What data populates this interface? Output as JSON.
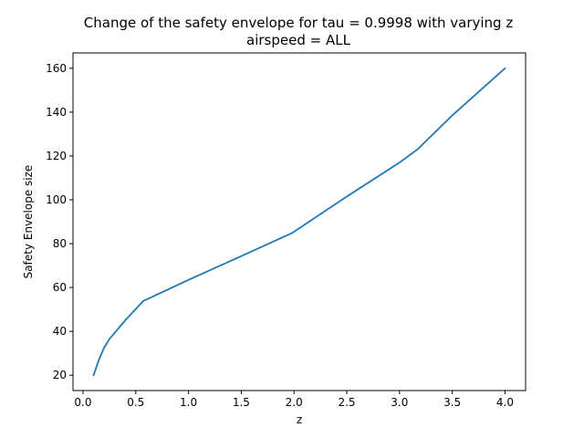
{
  "chart_data": {
    "type": "line",
    "title": "Change of the safety envelope for tau = 0.9998 with varying z",
    "subtitle": "airspeed = ALL",
    "xlabel": "z",
    "ylabel": "Safety Envelope size",
    "xlim": [
      -0.095,
      4.195
    ],
    "ylim": [
      13.0,
      167.0
    ],
    "x_ticks": [
      0.0,
      0.5,
      1.0,
      1.5,
      2.0,
      2.5,
      3.0,
      3.5,
      4.0
    ],
    "x_tick_labels": [
      "0.0",
      "0.5",
      "1.0",
      "1.5",
      "2.0",
      "2.5",
      "3.0",
      "3.5",
      "4.0"
    ],
    "y_ticks": [
      20,
      40,
      60,
      80,
      100,
      120,
      140,
      160
    ],
    "y_tick_labels": [
      "20",
      "40",
      "60",
      "80",
      "100",
      "120",
      "140",
      "160"
    ],
    "grid": false,
    "series": [
      {
        "color": "#1f77b4",
        "x": [
          0.1,
          0.15,
          0.2,
          0.25,
          0.4,
          0.57,
          1.0,
          1.5,
          1.98,
          2.5,
          3.0,
          3.17,
          3.5,
          4.0
        ],
        "y": [
          20.0,
          27.0,
          32.5,
          36.5,
          45.0,
          53.8,
          63.5,
          74.3,
          84.8,
          101.5,
          117.0,
          123.0,
          138.5,
          160.0
        ]
      }
    ]
  }
}
